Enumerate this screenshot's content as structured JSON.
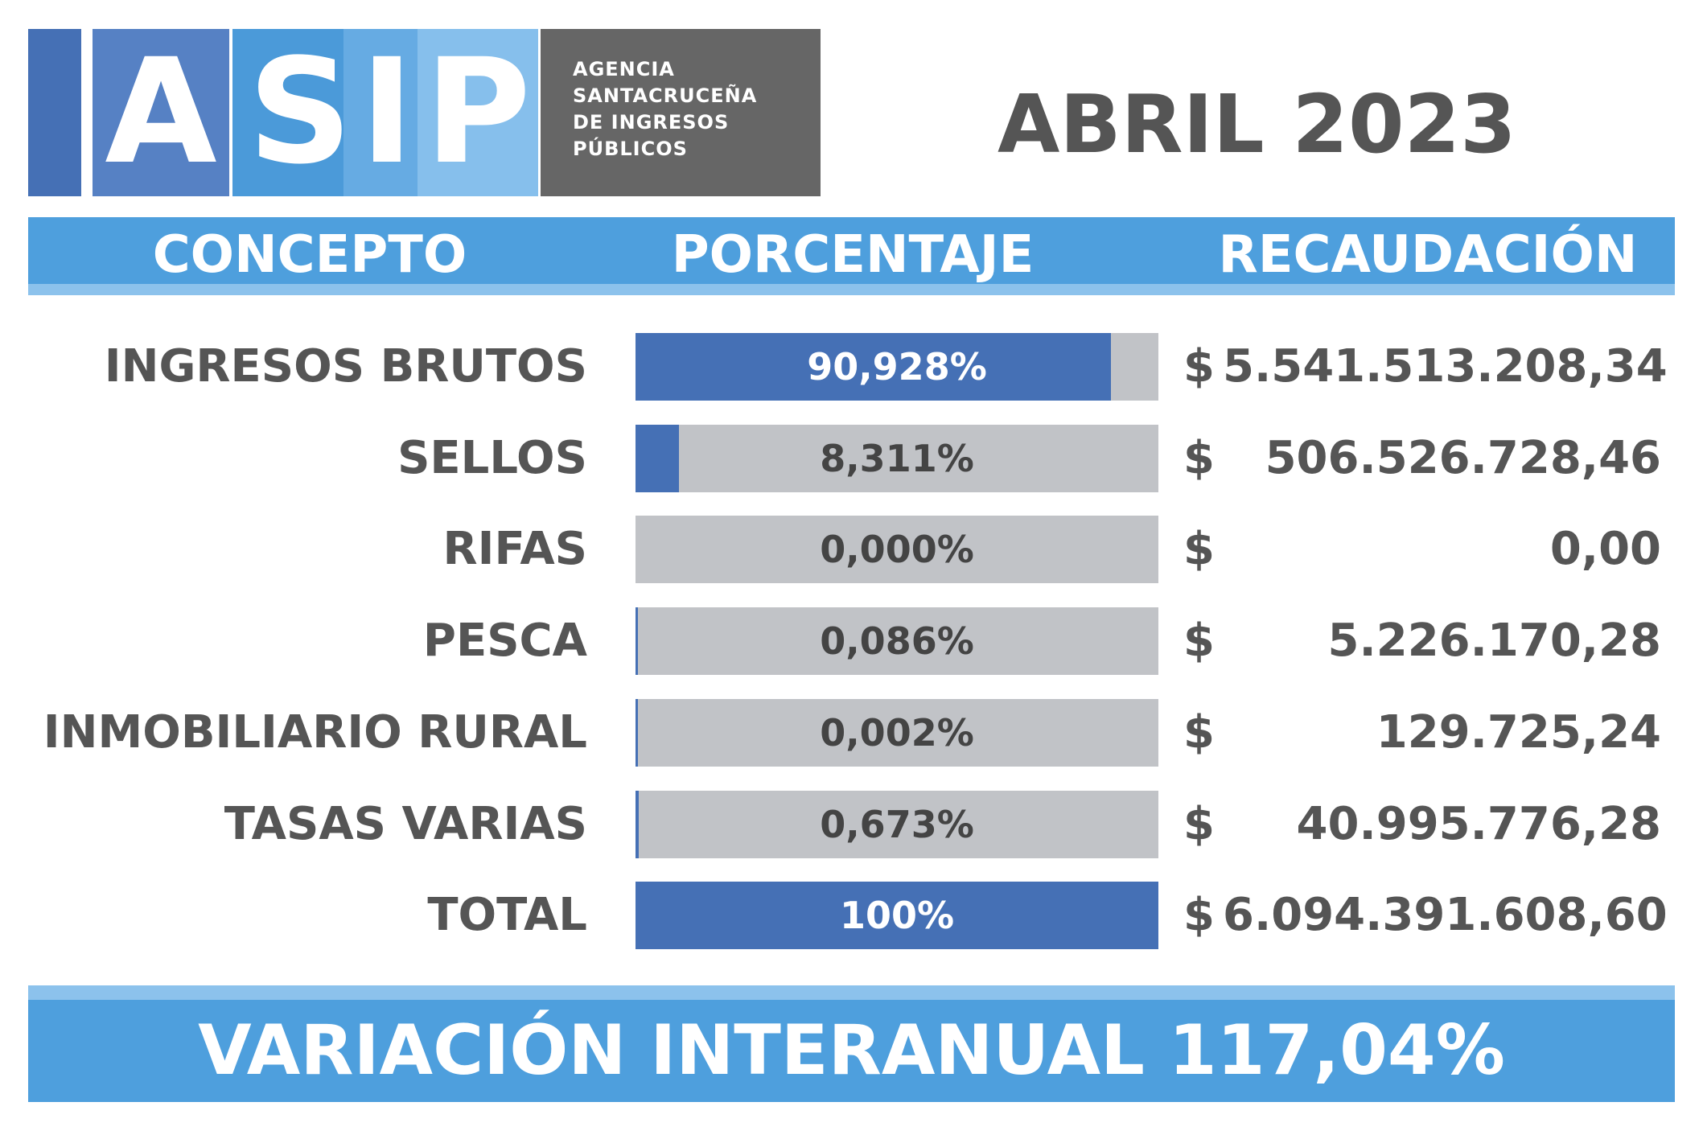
{
  "logo": {
    "letters": [
      "A",
      "S",
      "I",
      "P"
    ],
    "agency_lines": [
      "AGENCIA",
      "SANTACRUCEÑA",
      "DE INGRESOS",
      "PÚBLICOS"
    ]
  },
  "period": "ABRIL 2023",
  "headers": {
    "concept": "CONCEPTO",
    "percentage": "PORCENTAJE",
    "collection": "RECAUDACIÓN"
  },
  "currency_symbol": "$",
  "chart_data": {
    "type": "bar",
    "categories": [
      "INGRESOS BRUTOS",
      "SELLOS",
      "RIFAS",
      "PESCA",
      "INMOBILIARIO RURAL",
      "TASAS VARIAS",
      "TOTAL"
    ],
    "percent_labels": [
      "90,928%",
      "8,311%",
      "0,000%",
      "0,086%",
      "0,002%",
      "0,673%",
      "100%"
    ],
    "values": [
      90.928,
      8.311,
      0.0,
      0.086,
      0.002,
      0.673,
      100
    ],
    "amounts": [
      "5.541.513.208,34",
      "506.526.728,46",
      "0,00",
      "5.226.170,28",
      "129.725,24",
      "40.995.776,28",
      "6.094.391.608,60"
    ],
    "xlim": [
      0,
      100
    ]
  },
  "footer": "VARIACIÓN INTERANUAL 117,04%",
  "colors": {
    "fill": "#4570b5",
    "track": "#c1c3c7",
    "header": "#4e9fdd",
    "text_dark": "#555555"
  }
}
